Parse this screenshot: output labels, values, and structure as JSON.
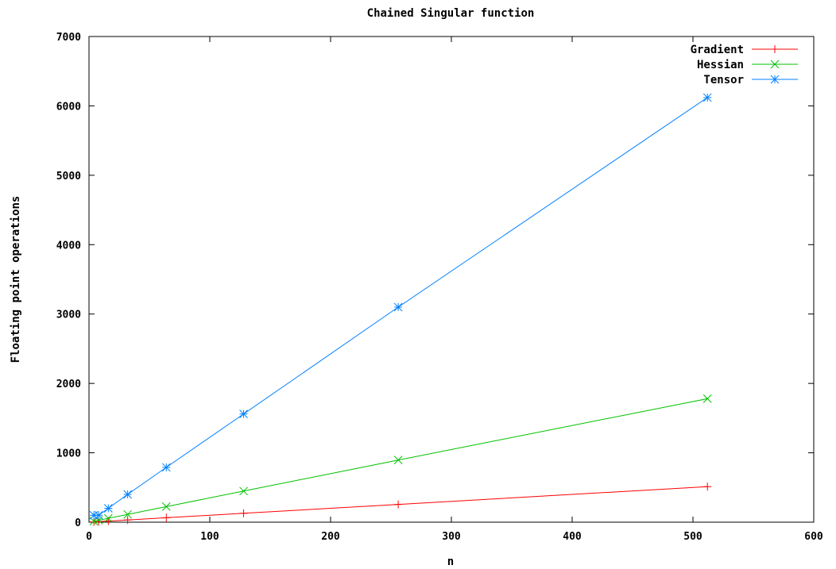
{
  "chart_data": {
    "type": "line",
    "title": "Chained Singular function",
    "xlabel": "n",
    "ylabel": "Floating point operations",
    "xlim": [
      0,
      600
    ],
    "ylim": [
      0,
      7000
    ],
    "xticks": [
      0,
      100,
      200,
      300,
      400,
      500,
      600
    ],
    "yticks": [
      0,
      1000,
      2000,
      3000,
      4000,
      5000,
      6000,
      7000
    ],
    "grid": false,
    "legend_position": "top-right",
    "series": [
      {
        "name": "Gradient",
        "color": "#ff0000",
        "marker": "plus",
        "x": [
          4,
          8,
          16,
          32,
          64,
          128,
          256,
          512
        ],
        "y": [
          4,
          8,
          16,
          32,
          64,
          128,
          256,
          512
        ]
      },
      {
        "name": "Hessian",
        "color": "#00c000",
        "marker": "cross",
        "x": [
          4,
          8,
          16,
          32,
          64,
          128,
          256,
          512
        ],
        "y": [
          14,
          28,
          56,
          112,
          224,
          448,
          896,
          1780
        ]
      },
      {
        "name": "Tensor",
        "color": "#0080ff",
        "marker": "star",
        "x": [
          4,
          8,
          16,
          32,
          64,
          128,
          256,
          512
        ],
        "y": [
          100,
          100,
          200,
          400,
          790,
          1560,
          3100,
          6120
        ]
      }
    ]
  }
}
